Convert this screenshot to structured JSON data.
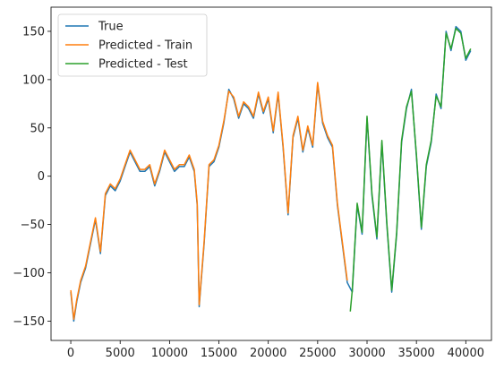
{
  "chart_data": {
    "type": "line",
    "xlim": [
      -2000,
      42600
    ],
    "ylim": [
      -170,
      175
    ],
    "x_ticks": [
      0,
      5000,
      10000,
      15000,
      20000,
      25000,
      30000,
      35000,
      40000
    ],
    "y_ticks": [
      -150,
      -100,
      -50,
      0,
      50,
      100,
      150
    ],
    "legend_position": "top-left",
    "series": [
      {
        "name": "True",
        "color": "#1f77b4",
        "x": [
          0,
          300,
          600,
          1000,
          1500,
          2000,
          2500,
          3000,
          3500,
          4000,
          4500,
          5000,
          5500,
          6000,
          6500,
          7000,
          7500,
          8000,
          8500,
          9000,
          9500,
          10000,
          10500,
          11000,
          11500,
          12000,
          12500,
          12800,
          13000,
          13500,
          14000,
          14500,
          15000,
          15500,
          16000,
          16500,
          17000,
          17500,
          18000,
          18500,
          19000,
          19500,
          20000,
          20500,
          21000,
          21500,
          22000,
          22500,
          23000,
          23500,
          24000,
          24500,
          25000,
          25500,
          26000,
          26500,
          27000,
          27500,
          28000,
          28500,
          29000,
          29500,
          30000,
          30500,
          31000,
          31500,
          32000,
          32500,
          33000,
          33500,
          34000,
          34500,
          35000,
          35500,
          36000,
          36500,
          37000,
          37500,
          38000,
          38500,
          39000,
          39500,
          40000,
          40500
        ],
        "y": [
          -120,
          -150,
          -130,
          -110,
          -95,
          -70,
          -45,
          -80,
          -20,
          -10,
          -15,
          -5,
          10,
          25,
          15,
          5,
          5,
          10,
          -10,
          5,
          25,
          15,
          5,
          10,
          10,
          20,
          5,
          -30,
          -135,
          -70,
          10,
          15,
          30,
          55,
          90,
          80,
          60,
          75,
          70,
          60,
          85,
          65,
          80,
          45,
          85,
          30,
          -40,
          40,
          60,
          25,
          50,
          30,
          95,
          55,
          40,
          30,
          -30,
          -70,
          -110,
          -120,
          -30,
          -60,
          60,
          -20,
          -65,
          35,
          -50,
          -120,
          -60,
          35,
          70,
          90,
          20,
          -55,
          10,
          35,
          85,
          70,
          150,
          130,
          155,
          150,
          120,
          130
        ]
      },
      {
        "name": "Predicted - Train",
        "color": "#ff7f0e",
        "x": [
          0,
          300,
          600,
          1000,
          1500,
          2000,
          2500,
          3000,
          3500,
          4000,
          4500,
          5000,
          5500,
          6000,
          6500,
          7000,
          7500,
          8000,
          8500,
          9000,
          9500,
          10000,
          10500,
          11000,
          11500,
          12000,
          12500,
          12800,
          13000,
          13500,
          14000,
          14500,
          15000,
          15500,
          16000,
          16500,
          17000,
          17500,
          18000,
          18500,
          19000,
          19500,
          20000,
          20500,
          21000,
          21500,
          22000,
          22500,
          23000,
          23500,
          24000,
          24500,
          25000,
          25500,
          26000,
          26500,
          27000,
          27500,
          28000
        ],
        "y": [
          -118,
          -148,
          -128,
          -108,
          -93,
          -68,
          -43,
          -78,
          -18,
          -8,
          -13,
          -3,
          12,
          27,
          17,
          7,
          7,
          12,
          -8,
          7,
          27,
          17,
          7,
          12,
          12,
          22,
          7,
          -28,
          -133,
          -68,
          12,
          17,
          32,
          57,
          88,
          82,
          62,
          77,
          72,
          62,
          87,
          67,
          82,
          47,
          87,
          32,
          -38,
          42,
          62,
          27,
          52,
          32,
          97,
          57,
          42,
          32,
          -28,
          -68,
          -108
        ]
      },
      {
        "name": "Predicted - Test",
        "color": "#2ca02c",
        "x": [
          28300,
          28500,
          29000,
          29500,
          30000,
          30500,
          31000,
          31500,
          32000,
          32500,
          33000,
          33500,
          34000,
          34500,
          35000,
          35500,
          36000,
          36500,
          37000,
          37500,
          38000,
          38500,
          39000,
          39500,
          40000,
          40500
        ],
        "y": [
          -140,
          -118,
          -28,
          -58,
          62,
          -18,
          -63,
          37,
          -48,
          -118,
          -58,
          37,
          72,
          88,
          22,
          -53,
          12,
          37,
          83,
          72,
          148,
          132,
          153,
          148,
          122,
          132
        ]
      }
    ]
  }
}
